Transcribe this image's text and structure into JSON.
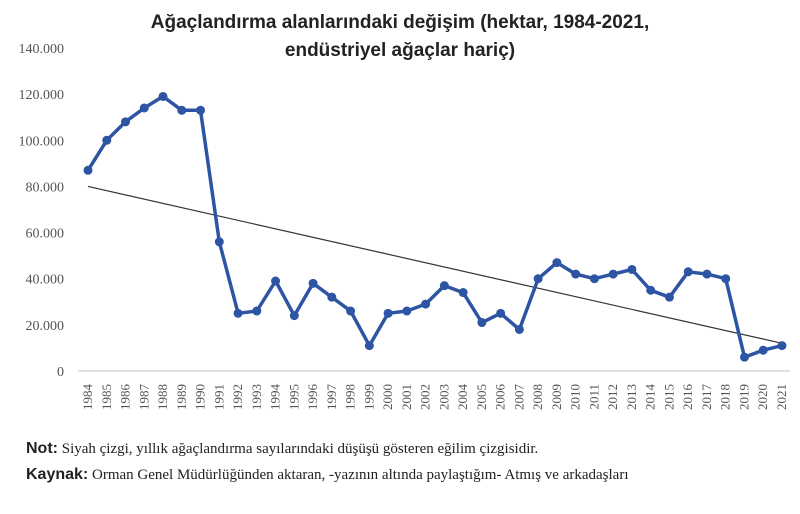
{
  "chart_data": {
    "type": "line",
    "title_lines": [
      "Ağaçlandırma alanlarındaki değişim  (hektar, 1984-2021,",
      "endüstriyel ağaçlar hariç)"
    ],
    "x": [
      "1984",
      "1985",
      "1986",
      "1987",
      "1988",
      "1989",
      "1990",
      "1991",
      "1992",
      "1993",
      "1994",
      "1995",
      "1996",
      "1997",
      "1998",
      "1999",
      "2000",
      "2001",
      "2002",
      "2003",
      "2004",
      "2005",
      "2006",
      "2007",
      "2008",
      "2009",
      "2010",
      "2011",
      "2012",
      "2013",
      "2014",
      "2015",
      "2016",
      "2017",
      "2018",
      "2019",
      "2020",
      "2021"
    ],
    "series": [
      {
        "values": [
          87000,
          100000,
          108000,
          114000,
          119000,
          113000,
          113000,
          56000,
          25000,
          26000,
          39000,
          24000,
          38000,
          32000,
          26000,
          11000,
          25000,
          26000,
          29000,
          37000,
          34000,
          21000,
          25000,
          18000,
          40000,
          47000,
          42000,
          40000,
          42000,
          44000,
          35000,
          32000,
          43000,
          42000,
          40000,
          6000,
          9000,
          11000
        ],
        "color": "#2e55a3"
      }
    ],
    "trendline": {
      "start": [
        1984,
        80000
      ],
      "end": [
        2021,
        12000
      ],
      "color": "#333333"
    },
    "yticks": [
      "0",
      "20.000",
      "40.000",
      "60.000",
      "80.000",
      "100.000",
      "120.000",
      "140.000"
    ],
    "ytick_values": [
      0,
      20000,
      40000,
      60000,
      80000,
      100000,
      120000,
      140000
    ],
    "ylim": [
      0,
      140000
    ],
    "grid": false,
    "legend": "none"
  },
  "notes": {
    "not_label": "Not:",
    "not_text": "Siyah çizgi, yıllık ağaçlandırma sayılarındaki düşüşü gösteren eğilim çizgisidir.",
    "kaynak_label": "Kaynak:",
    "kaynak_text": "Orman Genel Müdürlüğünden aktaran,  -yazının altında paylaştığım- Atmış ve arkadaşları"
  }
}
